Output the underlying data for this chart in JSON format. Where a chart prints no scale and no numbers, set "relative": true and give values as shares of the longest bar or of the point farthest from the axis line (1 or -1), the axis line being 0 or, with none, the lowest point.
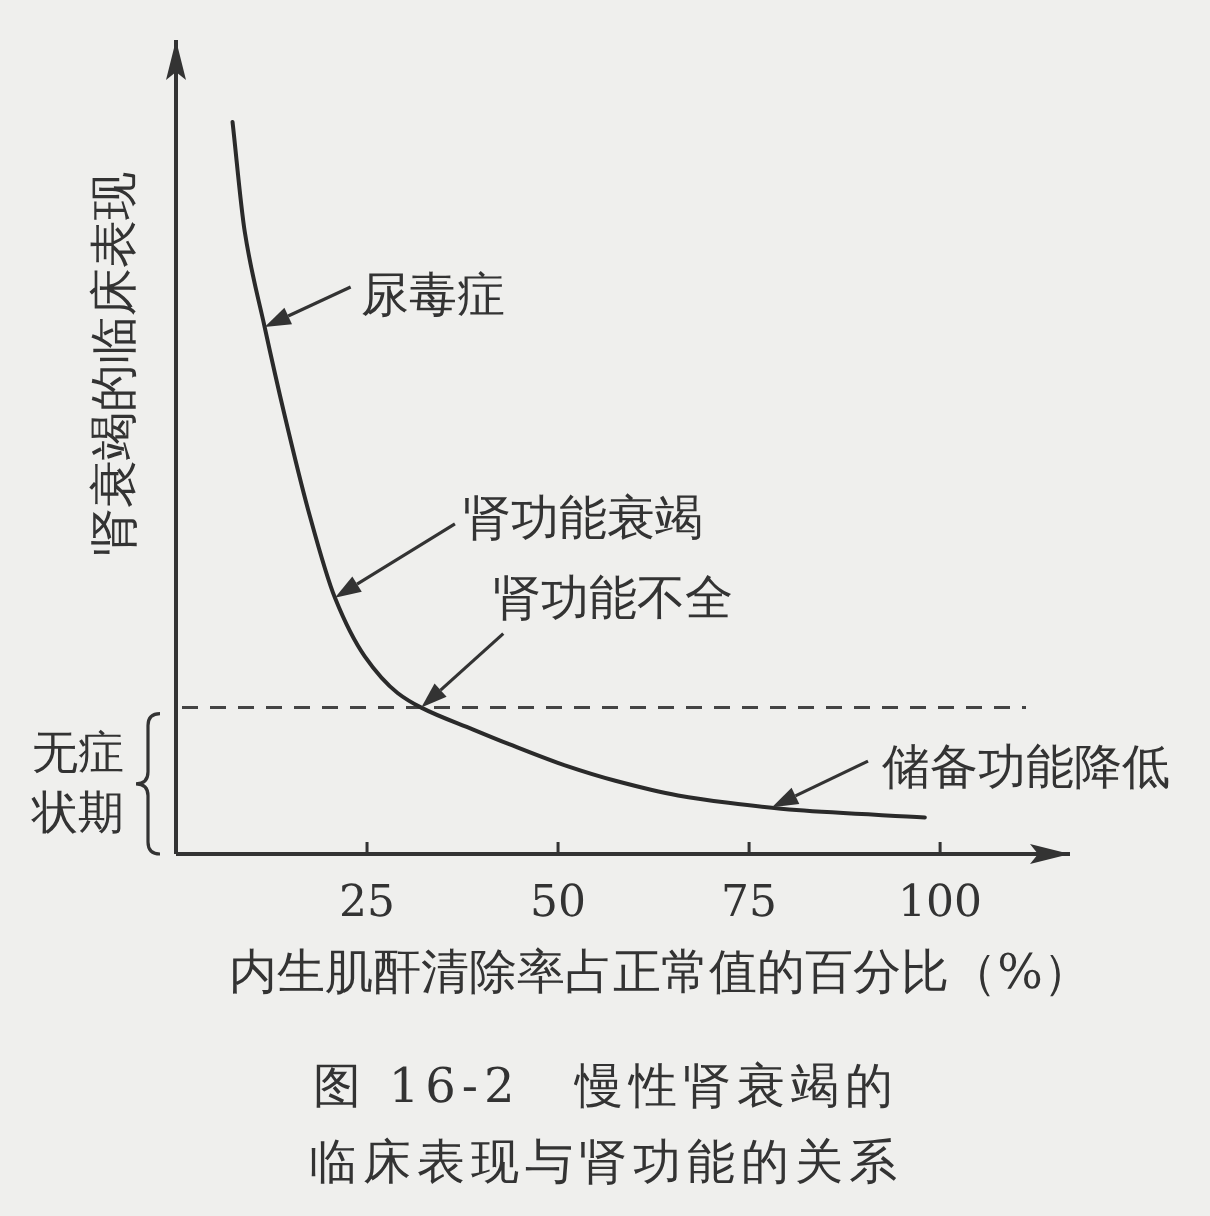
{
  "chart_data": {
    "type": "line",
    "title": "图 16-2　慢性肾衰竭的临床表现与肾功能的关系",
    "xlabel": "内生肌酐清除率占正常值的百分比（%）",
    "ylabel": "肾衰竭的临床表现",
    "relative": true,
    "x": [
      7.4,
      9,
      11.6,
      14.2,
      17.3,
      20.8,
      24.7,
      29,
      32.1,
      38.9,
      43.6,
      51.2,
      57.5,
      65.7,
      72.3,
      81.2,
      98
    ],
    "series": [
      {
        "color": "#2a2a2a",
        "values": [
          1,
          0.85,
          0.72,
          0.6,
          0.47,
          0.35,
          0.27,
          0.22,
          0.2,
          0.17,
          0.15,
          0.12,
          0.1,
          0.08,
          0.07,
          0.06,
          0.05
        ]
      }
    ],
    "xlim": [
      0,
      117
    ],
    "xticks": [
      25,
      50,
      75,
      100
    ],
    "ref_lines": [
      {
        "axis": "y",
        "value": 0.2,
        "line_style": "dashed",
        "color": "#444444"
      }
    ],
    "annotations": [
      {
        "text": "尿毒症",
        "x": 11.6,
        "y": 0.72
      },
      {
        "text": "肾功能衰竭",
        "x": 20.8,
        "y": 0.35
      },
      {
        "text": "肾功能不全",
        "x": 32.1,
        "y": 0.2
      },
      {
        "text": "储备功能降低",
        "x": 78,
        "y": 0.064
      },
      "无症状期"
    ]
  }
}
